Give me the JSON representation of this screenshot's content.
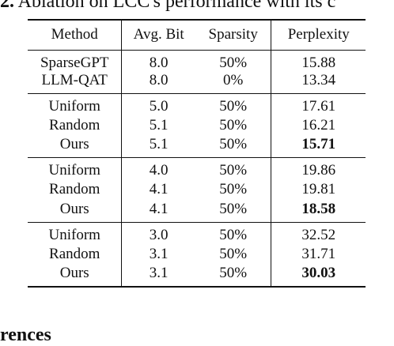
{
  "caption": {
    "label": "2.",
    "text": " Ablation on LCC's performance with its c"
  },
  "footer_fragment": "rences",
  "table": {
    "headers": [
      "Method",
      "Avg. Bit",
      "Sparsity",
      "Perplexity"
    ],
    "groups": [
      [
        {
          "method": "SparseGPT",
          "bit": "8.0",
          "sparsity": "50%",
          "ppl": "15.88",
          "best": false
        },
        {
          "method": "LLM-QAT",
          "bit": "8.0",
          "sparsity": "0%",
          "ppl": "13.34",
          "best": false
        }
      ],
      [
        {
          "method": "Uniform",
          "bit": "5.0",
          "sparsity": "50%",
          "ppl": "17.61",
          "best": false
        },
        {
          "method": "Random",
          "bit": "5.1",
          "sparsity": "50%",
          "ppl": "16.21",
          "best": false
        },
        {
          "method": "Ours",
          "bit": "5.1",
          "sparsity": "50%",
          "ppl": "15.71",
          "best": true
        }
      ],
      [
        {
          "method": "Uniform",
          "bit": "4.0",
          "sparsity": "50%",
          "ppl": "19.86",
          "best": false
        },
        {
          "method": "Random",
          "bit": "4.1",
          "sparsity": "50%",
          "ppl": "19.81",
          "best": false
        },
        {
          "method": "Ours",
          "bit": "4.1",
          "sparsity": "50%",
          "ppl": "18.58",
          "best": true
        }
      ],
      [
        {
          "method": "Uniform",
          "bit": "3.0",
          "sparsity": "50%",
          "ppl": "32.52",
          "best": false
        },
        {
          "method": "Random",
          "bit": "3.1",
          "sparsity": "50%",
          "ppl": "31.71",
          "best": false
        },
        {
          "method": "Ours",
          "bit": "3.1",
          "sparsity": "50%",
          "ppl": "30.03",
          "best": true
        }
      ]
    ]
  }
}
